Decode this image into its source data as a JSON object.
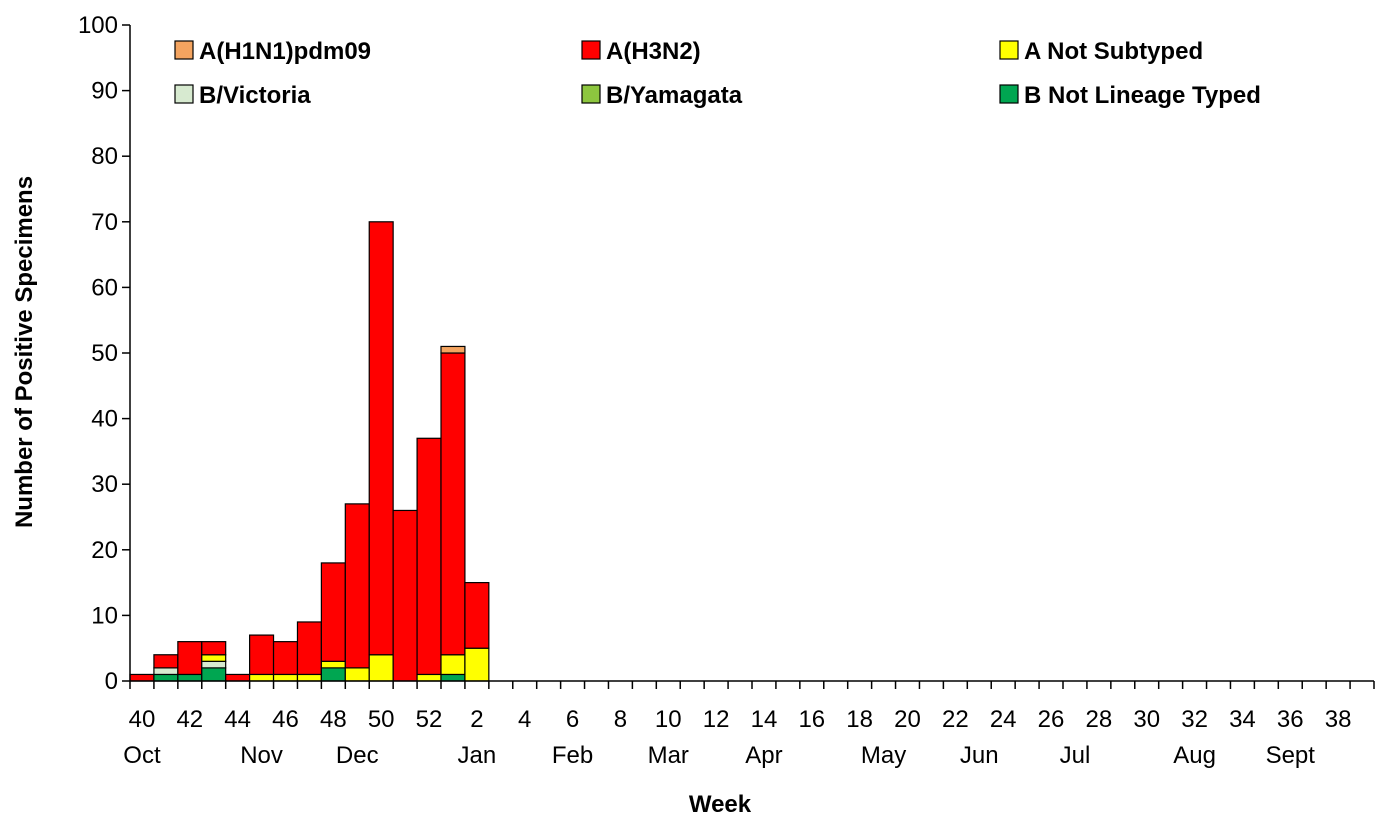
{
  "chart_data": {
    "type": "bar",
    "stacked": true,
    "title": "",
    "xlabel": "Week",
    "ylabel": "Number of Positive Specimens",
    "ylim": [
      0,
      100
    ],
    "yticks": [
      0,
      10,
      20,
      30,
      40,
      50,
      60,
      70,
      80,
      90,
      100
    ],
    "grid": false,
    "legend_position": "top",
    "weeks": [
      "40",
      "41",
      "42",
      "43",
      "44",
      "45",
      "46",
      "47",
      "48",
      "49",
      "50",
      "51",
      "52",
      "1",
      "2",
      "3",
      "4",
      "5",
      "6",
      "7",
      "8",
      "9",
      "10",
      "11",
      "12",
      "13",
      "14",
      "15",
      "16",
      "17",
      "18",
      "19",
      "20",
      "21",
      "22",
      "23",
      "24",
      "25",
      "26",
      "27",
      "28",
      "29",
      "30",
      "31",
      "32",
      "33",
      "34",
      "35",
      "36",
      "37",
      "38",
      "39"
    ],
    "week_tick_labels": [
      "40",
      "42",
      "44",
      "46",
      "48",
      "50",
      "52",
      "2",
      "4",
      "6",
      "8",
      "10",
      "12",
      "14",
      "16",
      "18",
      "20",
      "22",
      "24",
      "26",
      "28",
      "30",
      "32",
      "34",
      "36",
      "38"
    ],
    "month_labels": [
      {
        "label": "Oct",
        "week": "40"
      },
      {
        "label": "Nov",
        "week": "45"
      },
      {
        "label": "Dec",
        "week": "49"
      },
      {
        "label": "Jan",
        "week": "2"
      },
      {
        "label": "Feb",
        "week": "6"
      },
      {
        "label": "Mar",
        "week": "10"
      },
      {
        "label": "Apr",
        "week": "14"
      },
      {
        "label": "May",
        "week": "19"
      },
      {
        "label": "Jun",
        "week": "23"
      },
      {
        "label": "Jul",
        "week": "27"
      },
      {
        "label": "Aug",
        "week": "32"
      },
      {
        "label": "Sept",
        "week": "36"
      }
    ],
    "series": [
      {
        "name": "B Not Lineage Typed",
        "color": "#00a651",
        "values": [
          0,
          1,
          1,
          2,
          0,
          0,
          0,
          0,
          2,
          0,
          0,
          0,
          0,
          1,
          0
        ]
      },
      {
        "name": "B/Yamagata",
        "color": "#8dc63f",
        "values": [
          0,
          0,
          0,
          0,
          0,
          0,
          0,
          0,
          0,
          0,
          0,
          0,
          0,
          0,
          0
        ]
      },
      {
        "name": "B/Victoria",
        "color": "#d7ead0",
        "values": [
          0,
          1,
          0,
          1,
          0,
          0,
          0,
          0,
          0,
          0,
          0,
          0,
          0,
          0,
          0
        ]
      },
      {
        "name": "A Not Subtyped",
        "color": "#ffff00",
        "values": [
          0,
          0,
          0,
          1,
          0,
          1,
          1,
          1,
          1,
          2,
          4,
          0,
          1,
          3,
          5
        ]
      },
      {
        "name": "A(H3N2)",
        "color": "#ff0000",
        "values": [
          1,
          2,
          5,
          2,
          1,
          6,
          5,
          8,
          15,
          25,
          66,
          26,
          36,
          46,
          10
        ]
      },
      {
        "name": "A(H1N1)pdm09",
        "color": "#f4a460",
        "values": [
          0,
          0,
          0,
          0,
          0,
          0,
          0,
          0,
          0,
          0,
          0,
          0,
          0,
          1,
          0
        ]
      }
    ],
    "legend_order": [
      "A(H1N1)pdm09",
      "A(H3N2)",
      "A Not Subtyped",
      "B/Victoria",
      "B/Yamagata",
      "B Not Lineage Typed"
    ]
  }
}
